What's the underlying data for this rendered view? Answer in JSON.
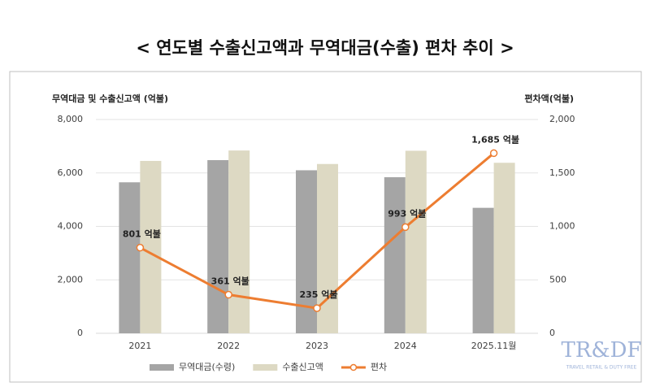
{
  "chart_data": {
    "type": "bar",
    "title": "< 연도별 수출신고액과 무역대금(수출) 편차 추이 >",
    "y_label": "무역대금 및 수출신고액 (억불)",
    "y2_label": "편차액(억불)",
    "categories": [
      "2021",
      "2022",
      "2023",
      "2024",
      "2025.11월"
    ],
    "series": [
      {
        "name": "무역대금(수령)",
        "color": "#a5a5a5",
        "values": [
          5650,
          6480,
          6100,
          5840,
          4695
        ]
      },
      {
        "name": "수출신고액",
        "color": "#ddd9c3",
        "values": [
          6450,
          6840,
          6335,
          6830,
          6380
        ]
      },
      {
        "name": "편차",
        "type": "line",
        "axis": "y2",
        "color": "#ed7d31",
        "values": [
          801,
          361,
          235,
          993,
          1685
        ],
        "value_labels": [
          "801 억불",
          "361 억불",
          "235 억불",
          "993 억불",
          "1,685 억불"
        ]
      }
    ],
    "ylim": [
      0,
      8000
    ],
    "yticks": [
      0,
      {
        "value": 2000,
        "label": "2,000"
      },
      {
        "value": 4000,
        "label": "4,000"
      },
      {
        "value": 6000,
        "label": "6,000"
      },
      {
        "value": 8000,
        "label": "8,000"
      }
    ],
    "y2lim": [
      0,
      2000
    ],
    "y2ticks": [
      0,
      500,
      {
        "value": 1000,
        "label": "1,000"
      },
      {
        "value": 1500,
        "label": "1,500"
      },
      {
        "value": 2000,
        "label": "2,000"
      }
    ],
    "grid": true,
    "legend": "bottom"
  },
  "watermark": {
    "logo": "TR&DF",
    "tagline": "TRAVEL RETAIL & DUTY FREE"
  }
}
